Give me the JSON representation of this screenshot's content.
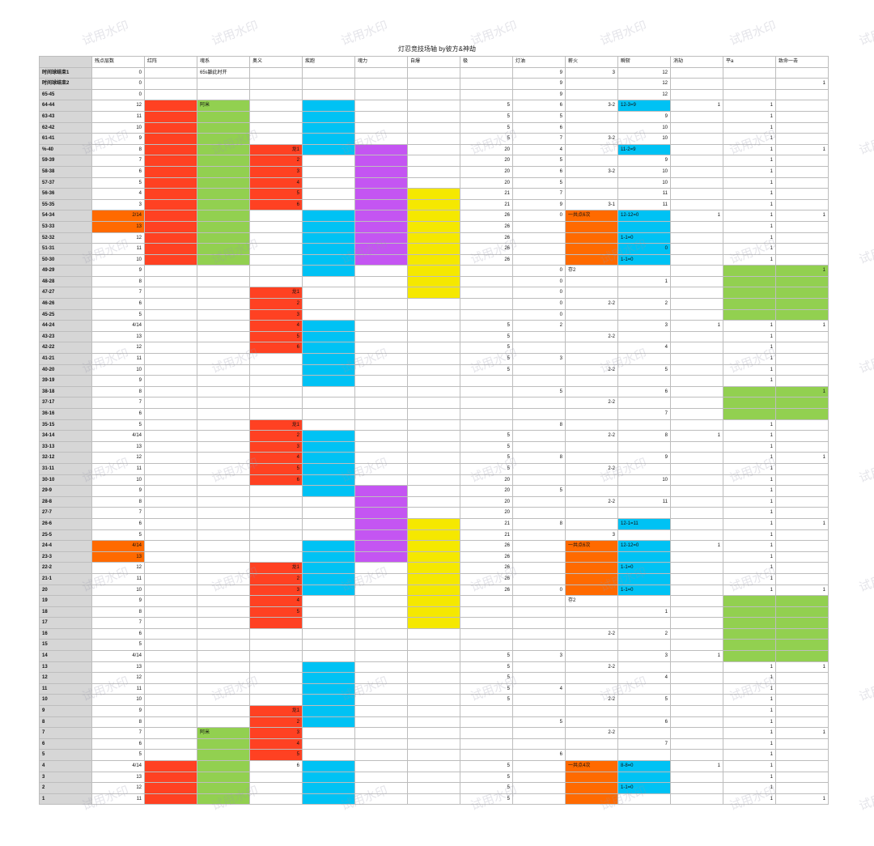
{
  "title": "灯忍竞技场轴 by彼方&神劫",
  "watermark": "试用水印",
  "colors": {
    "red": "#ff4122",
    "orange": "#ff6a00",
    "green": "#92d050",
    "blue": "#00c2f4",
    "purple": "#c455f2",
    "yellow": "#f5e800",
    "header_gray": "#d6d6d6",
    "grid": "#bdbdbd"
  },
  "headers": [
    "",
    "残点层数",
    "红阵",
    "魂系",
    "奥义",
    "疾跑",
    "魂力",
    "自爆",
    "极",
    "灯油",
    "薪火",
    "瞬斩",
    "消劫",
    "平a",
    "致命一击"
  ],
  "rows": [
    {
      "label": "时间球结束1",
      "cells": [
        "0",
        "",
        "65s鼬此时开",
        "",
        "",
        "",
        "",
        "",
        "9",
        "3",
        "12",
        "",
        "",
        ""
      ]
    },
    {
      "label": "时间球结束2",
      "cells": [
        "0",
        "",
        "",
        "",
        "",
        "",
        "",
        "",
        "9",
        "",
        "12",
        "",
        "",
        "1"
      ]
    },
    {
      "label": "65-45",
      "cells": [
        "0",
        "",
        "",
        "",
        "",
        "",
        "",
        "",
        "9",
        "",
        "12",
        "",
        "",
        ""
      ]
    },
    {
      "label": "64-44",
      "cells": [
        "12",
        "",
        "阿米",
        "",
        "",
        "",
        "",
        "5",
        "6",
        "3-2",
        "12-3=9",
        "1",
        "1",
        ""
      ]
    },
    {
      "label": "63-43",
      "cells": [
        "11",
        "",
        "",
        "",
        "",
        "",
        "",
        "5",
        "5",
        "",
        "9",
        "",
        "1",
        ""
      ]
    },
    {
      "label": "62-42",
      "cells": [
        "10",
        "",
        "",
        "",
        "",
        "",
        "",
        "5",
        "6",
        "",
        "10",
        "",
        "1",
        ""
      ]
    },
    {
      "label": "61-41",
      "cells": [
        "9",
        "",
        "",
        "",
        "",
        "",
        "",
        "5",
        "7",
        "3-2",
        "10",
        "",
        "1",
        ""
      ]
    },
    {
      "label": "%-40",
      "cells": [
        "8",
        "",
        "",
        "龙1",
        "",
        "",
        "",
        "20",
        "4",
        "",
        "11-2=9",
        "",
        "1",
        "1"
      ]
    },
    {
      "label": "59-39",
      "cells": [
        "7",
        "",
        "",
        "2",
        "",
        "",
        "",
        "20",
        "5",
        "",
        "9",
        "",
        "1",
        ""
      ]
    },
    {
      "label": "58-38",
      "cells": [
        "6",
        "",
        "",
        "3",
        "",
        "",
        "",
        "20",
        "6",
        "3-2",
        "10",
        "",
        "1",
        ""
      ]
    },
    {
      "label": "57-37",
      "cells": [
        "5",
        "",
        "",
        "4",
        "",
        "",
        "",
        "20",
        "5",
        "",
        "10",
        "",
        "1",
        ""
      ]
    },
    {
      "label": "56-36",
      "cells": [
        "4",
        "",
        "",
        "5",
        "",
        "",
        "",
        "21",
        "7",
        "",
        "11",
        "",
        "1",
        ""
      ]
    },
    {
      "label": "55-35",
      "cells": [
        "3",
        "",
        "",
        "6",
        "",
        "",
        "",
        "21",
        "9",
        "3-1",
        "11",
        "",
        "1",
        ""
      ]
    },
    {
      "label": "54-34",
      "cells": [
        "2/14",
        "",
        "",
        "",
        "",
        "",
        "",
        "26",
        "0",
        "一共点6次",
        "12-12=0",
        "1",
        "1",
        "1"
      ]
    },
    {
      "label": "53-33",
      "cells": [
        "13",
        "",
        "",
        "",
        "",
        "",
        "",
        "26",
        "",
        "",
        "",
        "",
        "1",
        ""
      ]
    },
    {
      "label": "52-32",
      "cells": [
        "12",
        "",
        "",
        "",
        "",
        "",
        "",
        "26",
        "",
        "",
        "1-1=0",
        "",
        "1",
        ""
      ]
    },
    {
      "label": "51-31",
      "cells": [
        "11",
        "",
        "",
        "",
        "",
        "",
        "",
        "26",
        "",
        "",
        "0",
        "",
        "1",
        ""
      ]
    },
    {
      "label": "50-30",
      "cells": [
        "10",
        "",
        "",
        "",
        "",
        "",
        "",
        "26",
        "",
        "",
        "1-1=0",
        "",
        "1",
        ""
      ]
    },
    {
      "label": "49-29",
      "cells": [
        "9",
        "",
        "",
        "",
        "",
        "",
        "",
        "",
        "0",
        "存2",
        "",
        "",
        "",
        "1"
      ]
    },
    {
      "label": "48-28",
      "cells": [
        "8",
        "",
        "",
        "",
        "",
        "",
        "",
        "",
        "0",
        "",
        "1",
        "",
        "",
        ""
      ]
    },
    {
      "label": "47-27",
      "cells": [
        "7",
        "",
        "",
        "龙1",
        "",
        "",
        "",
        "",
        "0",
        "",
        "",
        "",
        "",
        ""
      ]
    },
    {
      "label": "46-26",
      "cells": [
        "6",
        "",
        "",
        "2",
        "",
        "",
        "",
        "",
        "0",
        "2-2",
        "2",
        "",
        "",
        ""
      ]
    },
    {
      "label": "45-25",
      "cells": [
        "5",
        "",
        "",
        "3",
        "",
        "",
        "",
        "",
        "0",
        "",
        "",
        "",
        "",
        ""
      ]
    },
    {
      "label": "44-24",
      "cells": [
        "4/14",
        "",
        "",
        "4",
        "",
        "",
        "",
        "5",
        "2",
        "",
        "3",
        "1",
        "1",
        "1"
      ]
    },
    {
      "label": "43-23",
      "cells": [
        "13",
        "",
        "",
        "5",
        "",
        "",
        "",
        "5",
        "",
        "2-2",
        "",
        "",
        "1",
        ""
      ]
    },
    {
      "label": "42-22",
      "cells": [
        "12",
        "",
        "",
        "6",
        "",
        "",
        "",
        "5",
        "",
        "",
        "4",
        "",
        "1",
        ""
      ]
    },
    {
      "label": "41-21",
      "cells": [
        "11",
        "",
        "",
        "",
        "",
        "",
        "",
        "5",
        "3",
        "",
        "",
        "",
        "1",
        ""
      ]
    },
    {
      "label": "40-20",
      "cells": [
        "10",
        "",
        "",
        "",
        "",
        "",
        "",
        "5",
        "",
        "2-2",
        "5",
        "",
        "1",
        ""
      ]
    },
    {
      "label": "39-19",
      "cells": [
        "9",
        "",
        "",
        "",
        "",
        "",
        "",
        "",
        "",
        "",
        "",
        "",
        "1",
        ""
      ]
    },
    {
      "label": "38-18",
      "cells": [
        "8",
        "",
        "",
        "",
        "",
        "",
        "",
        "",
        "5",
        "",
        "6",
        "",
        "",
        "1"
      ]
    },
    {
      "label": "37-17",
      "cells": [
        "7",
        "",
        "",
        "",
        "",
        "",
        "",
        "",
        "",
        "2-2",
        "",
        "",
        "",
        ""
      ]
    },
    {
      "label": "36-16",
      "cells": [
        "6",
        "",
        "",
        "",
        "",
        "",
        "",
        "",
        "",
        "",
        "7",
        "",
        "",
        ""
      ]
    },
    {
      "label": "35-15",
      "cells": [
        "5",
        "",
        "",
        "龙1",
        "",
        "",
        "",
        "",
        "8",
        "",
        "",
        "",
        "1",
        ""
      ]
    },
    {
      "label": "34-14",
      "cells": [
        "4/14",
        "",
        "",
        "2",
        "",
        "",
        "",
        "5",
        "",
        "2-2",
        "8",
        "1",
        "1",
        ""
      ]
    },
    {
      "label": "33-13",
      "cells": [
        "13",
        "",
        "",
        "3",
        "",
        "",
        "",
        "5",
        "",
        "",
        "",
        "",
        "1",
        ""
      ]
    },
    {
      "label": "32-12",
      "cells": [
        "12",
        "",
        "",
        "4",
        "",
        "",
        "",
        "5",
        "8",
        "",
        "9",
        "",
        "1",
        "1"
      ]
    },
    {
      "label": "31-11",
      "cells": [
        "11",
        "",
        "",
        "5",
        "",
        "",
        "",
        "5",
        "",
        "2-2",
        "",
        "",
        "1",
        ""
      ]
    },
    {
      "label": "30-10",
      "cells": [
        "10",
        "",
        "",
        "6",
        "",
        "",
        "",
        "20",
        "",
        "",
        "10",
        "",
        "1",
        ""
      ]
    },
    {
      "label": "29-9",
      "cells": [
        "9",
        "",
        "",
        "",
        "",
        "",
        "",
        "20",
        "5",
        "",
        "",
        "",
        "1",
        ""
      ]
    },
    {
      "label": "28-8",
      "cells": [
        "8",
        "",
        "",
        "",
        "",
        "",
        "",
        "20",
        "",
        "2-2",
        "11",
        "",
        "1",
        ""
      ]
    },
    {
      "label": "27-7",
      "cells": [
        "7",
        "",
        "",
        "",
        "",
        "",
        "",
        "20",
        "",
        "",
        "",
        "",
        "1",
        ""
      ]
    },
    {
      "label": "26-6",
      "cells": [
        "6",
        "",
        "",
        "",
        "",
        "",
        "",
        "21",
        "8",
        "",
        "12-1=11",
        "",
        "1",
        "1"
      ]
    },
    {
      "label": "25-5",
      "cells": [
        "5",
        "",
        "",
        "",
        "",
        "",
        "",
        "21",
        "",
        "3",
        "",
        "",
        "1",
        ""
      ]
    },
    {
      "label": "24-4",
      "cells": [
        "4/14",
        "",
        "",
        "",
        "",
        "",
        "",
        "26",
        "",
        "一共点6次",
        "12-12=0",
        "1",
        "1",
        ""
      ]
    },
    {
      "label": "23-3",
      "cells": [
        "13",
        "",
        "",
        "",
        "",
        "",
        "",
        "26",
        "",
        "",
        "",
        "",
        "1",
        ""
      ]
    },
    {
      "label": "22-2",
      "cells": [
        "12",
        "",
        "",
        "龙1",
        "",
        "",
        "",
        "26",
        "",
        "",
        "1-1=0",
        "",
        "1",
        ""
      ]
    },
    {
      "label": "21-1",
      "cells": [
        "11",
        "",
        "",
        "2",
        "",
        "",
        "",
        "26",
        "",
        "",
        "",
        "",
        "1",
        ""
      ]
    },
    {
      "label": "20",
      "cells": [
        "10",
        "",
        "",
        "3",
        "",
        "",
        "",
        "26",
        "0",
        "",
        "1-1=0",
        "",
        "1",
        "1"
      ]
    },
    {
      "label": "19",
      "cells": [
        "9",
        "",
        "",
        "4",
        "",
        "",
        "",
        "",
        "",
        "存2",
        "",
        "",
        "",
        ""
      ]
    },
    {
      "label": "18",
      "cells": [
        "8",
        "",
        "",
        "5",
        "",
        "",
        "",
        "",
        "",
        "",
        "1",
        "",
        "",
        ""
      ]
    },
    {
      "label": "17",
      "cells": [
        "7",
        "",
        "",
        "",
        "",
        "",
        "",
        "",
        "",
        "",
        "",
        "",
        "",
        ""
      ]
    },
    {
      "label": "16",
      "cells": [
        "6",
        "",
        "",
        "",
        "",
        "",
        "",
        "",
        "",
        "2-2",
        "2",
        "",
        "",
        ""
      ]
    },
    {
      "label": "15",
      "cells": [
        "5",
        "",
        "",
        "",
        "",
        "",
        "",
        "",
        "",
        "",
        "",
        "",
        "",
        ""
      ]
    },
    {
      "label": "14",
      "cells": [
        "4/14",
        "",
        "",
        "",
        "",
        "",
        "",
        "5",
        "3",
        "",
        "3",
        "1",
        "",
        ""
      ]
    },
    {
      "label": "13",
      "cells": [
        "13",
        "",
        "",
        "",
        "",
        "",
        "",
        "5",
        "",
        "2-2",
        "",
        "",
        "1",
        "1"
      ]
    },
    {
      "label": "12",
      "cells": [
        "12",
        "",
        "",
        "",
        "",
        "",
        "",
        "5",
        "",
        "",
        "4",
        "",
        "1",
        ""
      ]
    },
    {
      "label": "11",
      "cells": [
        "11",
        "",
        "",
        "",
        "",
        "",
        "",
        "5",
        "4",
        "",
        "",
        "",
        "1",
        ""
      ]
    },
    {
      "label": "10",
      "cells": [
        "10",
        "",
        "",
        "",
        "",
        "",
        "",
        "5",
        "",
        "2-2",
        "5",
        "",
        "1",
        ""
      ]
    },
    {
      "label": "9",
      "cells": [
        "9",
        "",
        "",
        "龙1",
        "",
        "",
        "",
        "",
        "",
        "",
        "",
        "",
        "1",
        ""
      ]
    },
    {
      "label": "8",
      "cells": [
        "8",
        "",
        "",
        "2",
        "",
        "",
        "",
        "",
        "5",
        "",
        "6",
        "",
        "1",
        ""
      ]
    },
    {
      "label": "7",
      "cells": [
        "7",
        "",
        "阿米",
        "3",
        "",
        "",
        "",
        "",
        "",
        "2-2",
        "",
        "",
        "1",
        "1"
      ]
    },
    {
      "label": "6",
      "cells": [
        "6",
        "",
        "",
        "4",
        "",
        "",
        "",
        "",
        "",
        "",
        "7",
        "",
        "1",
        ""
      ]
    },
    {
      "label": "5",
      "cells": [
        "5",
        "",
        "",
        "5",
        "",
        "",
        "",
        "",
        "6",
        "",
        "",
        "",
        "1",
        ""
      ]
    },
    {
      "label": "4",
      "cells": [
        "4/14",
        "",
        "",
        "6",
        "",
        "",
        "",
        "5",
        "",
        "一共点4次",
        "8-8=0",
        "1",
        "1",
        ""
      ]
    },
    {
      "label": "3",
      "cells": [
        "13",
        "",
        "",
        "",
        "",
        "",
        "",
        "5",
        "",
        "",
        "",
        "",
        "1",
        ""
      ]
    },
    {
      "label": "2",
      "cells": [
        "12",
        "",
        "",
        "",
        "",
        "",
        "",
        "5",
        "",
        "",
        "1-1=0",
        "",
        "1",
        ""
      ]
    },
    {
      "label": "1",
      "cells": [
        "11",
        "",
        "",
        "",
        "",
        "",
        "",
        "5",
        "",
        "",
        "",
        "",
        "1",
        "1"
      ]
    }
  ]
}
